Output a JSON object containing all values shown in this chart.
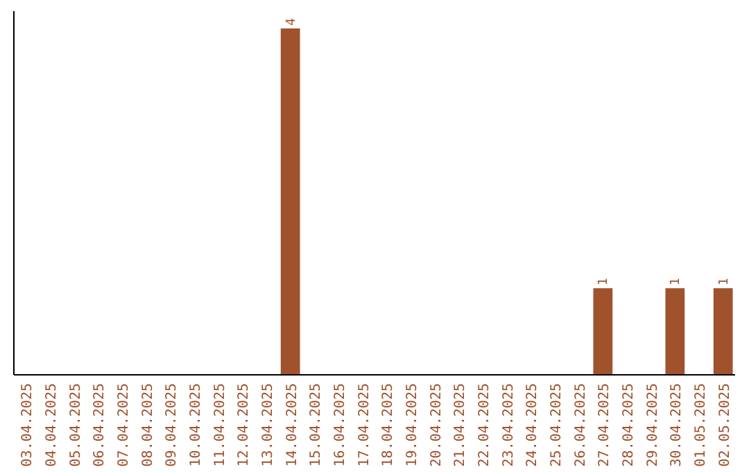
{
  "chart_data": {
    "type": "bar",
    "categories": [
      "03.04.2025",
      "04.04.2025",
      "05.04.2025",
      "06.04.2025",
      "07.04.2025",
      "08.04.2025",
      "09.04.2025",
      "10.04.2025",
      "11.04.2025",
      "12.04.2025",
      "13.04.2025",
      "14.04.2025",
      "15.04.2025",
      "16.04.2025",
      "17.04.2025",
      "18.04.2025",
      "19.04.2025",
      "20.04.2025",
      "21.04.2025",
      "22.04.2025",
      "23.04.2025",
      "24.04.2025",
      "25.04.2025",
      "26.04.2025",
      "27.04.2025",
      "28.04.2025",
      "29.04.2025",
      "30.04.2025",
      "01.05.2025",
      "02.05.2025"
    ],
    "values": [
      0,
      0,
      0,
      0,
      0,
      0,
      0,
      0,
      0,
      0,
      0,
      4,
      0,
      0,
      0,
      0,
      0,
      0,
      0,
      0,
      0,
      0,
      0,
      0,
      1,
      0,
      0,
      1,
      0,
      1
    ],
    "value_labels": [
      null,
      null,
      null,
      null,
      null,
      null,
      null,
      null,
      null,
      null,
      null,
      "4",
      null,
      null,
      null,
      null,
      null,
      null,
      null,
      null,
      null,
      null,
      null,
      null,
      "1",
      null,
      null,
      "1",
      null,
      "1"
    ],
    "color": "#a0522d"
  }
}
